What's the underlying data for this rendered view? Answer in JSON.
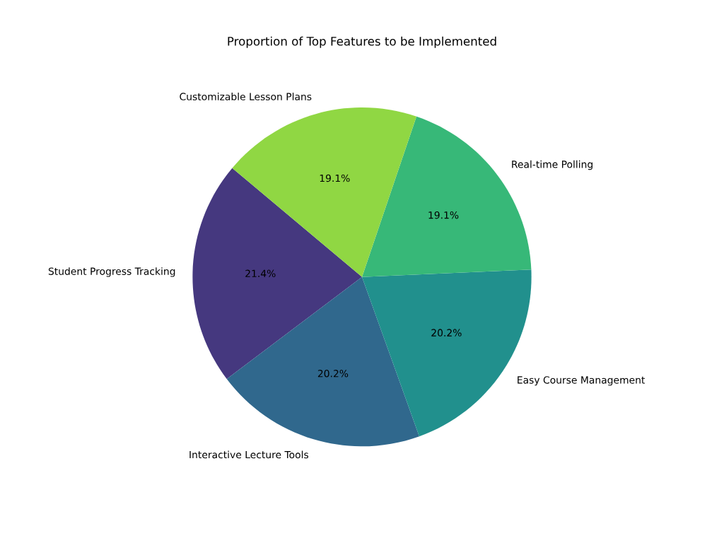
{
  "chart_data": {
    "type": "pie",
    "title": "Proportion of Top Features to be Implemented",
    "categories": [
      "Student Progress Tracking",
      "Interactive Lecture Tools",
      "Easy Course Management",
      "Real-time Polling",
      "Customizable Lesson Plans"
    ],
    "values": [
      21.4,
      20.2,
      20.2,
      19.1,
      19.1
    ],
    "colors": [
      "#45387f",
      "#30688d",
      "#21908d",
      "#37b878",
      "#90d743"
    ],
    "value_labels": [
      "21.4%",
      "20.2%",
      "20.2%",
      "19.1%",
      "19.1%"
    ]
  }
}
